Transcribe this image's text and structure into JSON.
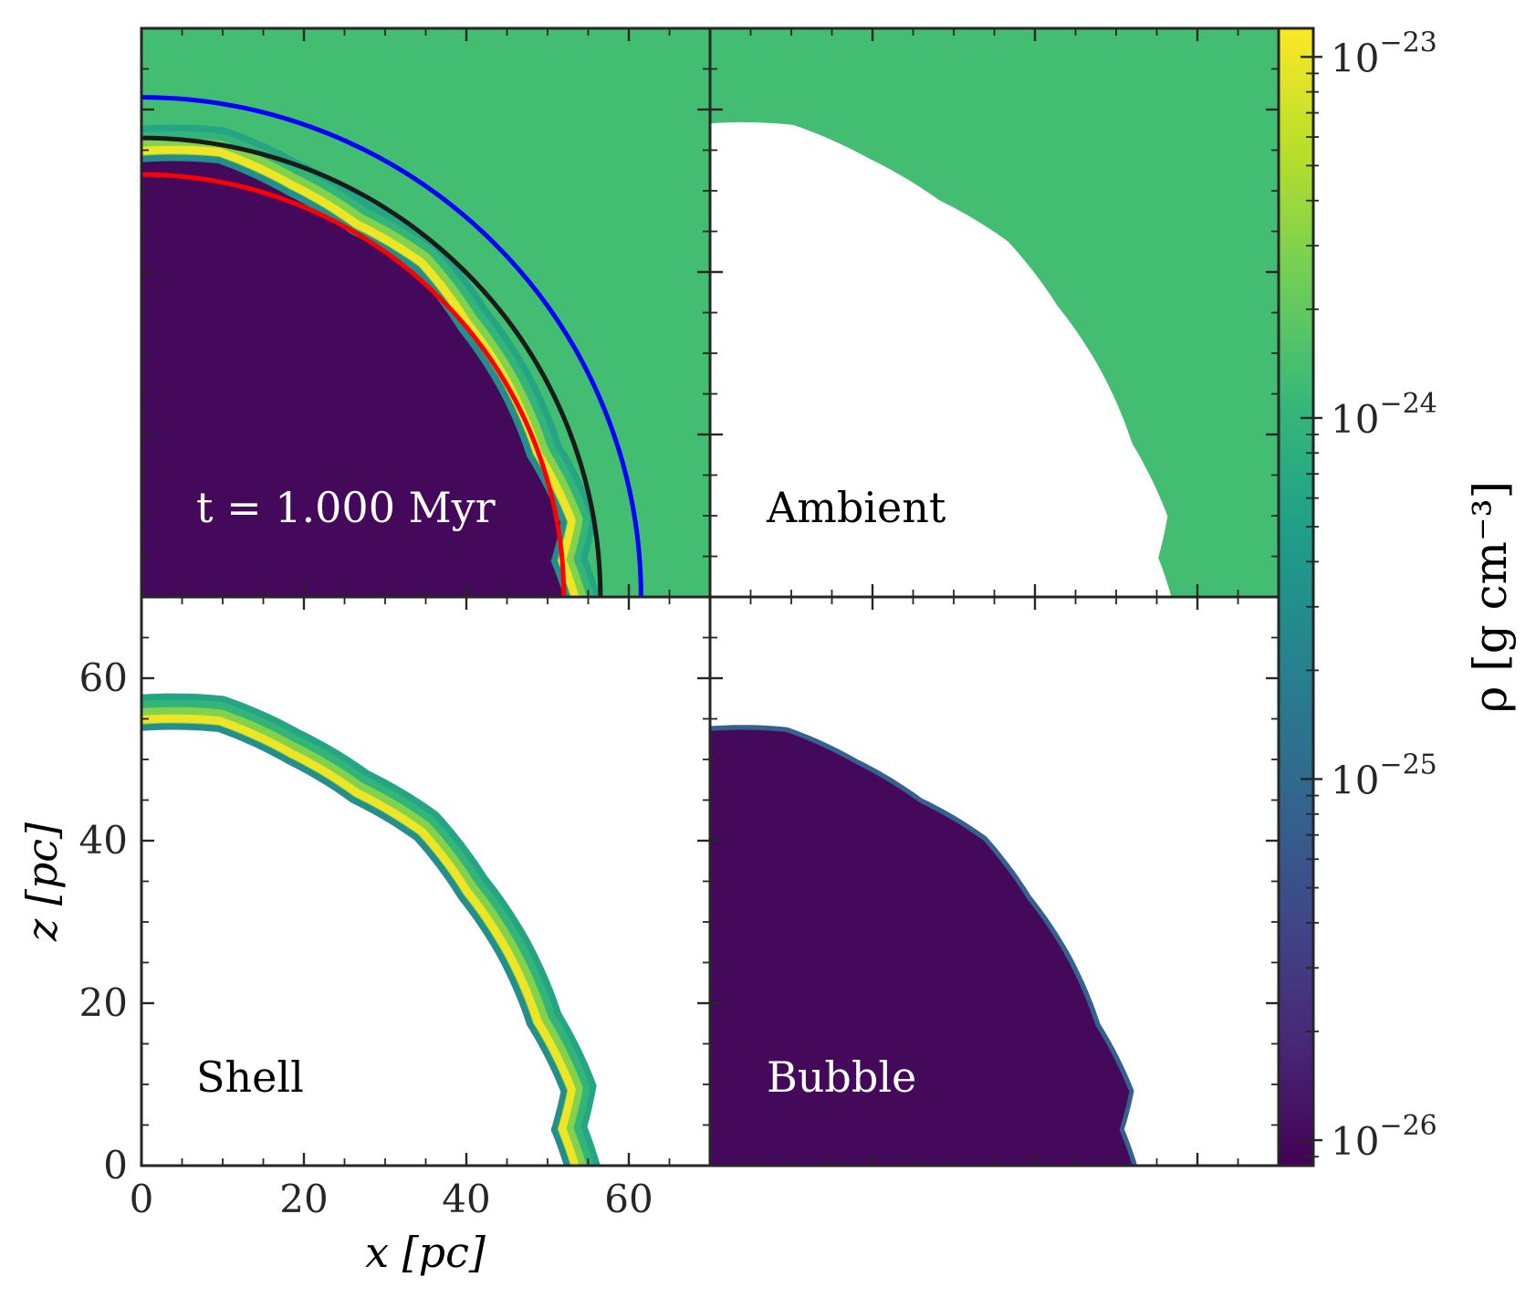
{
  "chart_data": {
    "type": "heatmap",
    "title": "",
    "xlabel": "x [pc]",
    "ylabel": "z [pc]",
    "xlim": [
      0,
      70
    ],
    "ylim": [
      0,
      70
    ],
    "x_ticks": [
      0,
      20,
      40,
      60
    ],
    "y_ticks": [
      0,
      20,
      40,
      60
    ],
    "minor_tick_step": 5,
    "colorbar": {
      "label": "ρ [g cm⁻³]",
      "scale": "log",
      "range": [
        8.5e-27,
        1.2e-23
      ],
      "ticks": [
        {
          "base": "10",
          "exp": "−23",
          "value": 1e-23
        },
        {
          "base": "10",
          "exp": "−24",
          "value": 1e-24
        },
        {
          "base": "10",
          "exp": "−25",
          "value": 1e-25
        },
        {
          "base": "10",
          "exp": "−26",
          "value": 1e-26
        }
      ],
      "colors": [
        "#440154",
        "#482878",
        "#3e4989",
        "#31688e",
        "#26828e",
        "#1f9e89",
        "#35b779",
        "#6ece58",
        "#b5de2b",
        "#fde725"
      ]
    },
    "densities": {
      "bubble": 1e-26,
      "ambient": 1.3e-24,
      "shell_peak": 1e-23,
      "shell_edge": 1e-24
    },
    "shell_inner_radius_profile": {
      "angles_deg": [
        0,
        10,
        20,
        30,
        40,
        50,
        60,
        70,
        80,
        85,
        90
      ],
      "r_pc": [
        53.5,
        54.2,
        52.6,
        51.6,
        52.3,
        51.0,
        50.8,
        50.5,
        52.4,
        50.6,
        52.0
      ]
    },
    "shell_thickness_pc": 4.5,
    "circles": [
      {
        "name": "red",
        "color": "#ff0000",
        "radius": 52
      },
      {
        "name": "black",
        "color": "#1a1a1a",
        "radius": 56.5
      },
      {
        "name": "blue",
        "color": "#0000ff",
        "radius": 61.5
      }
    ],
    "panels": [
      {
        "id": "full",
        "label": "t = 1.000 Myr",
        "label_color": "#ffffff",
        "show": [
          "bubble",
          "shell",
          "ambient"
        ],
        "show_circles": true
      },
      {
        "id": "ambient",
        "label": "Ambient",
        "label_color": "#000000",
        "show": [
          "ambient"
        ],
        "show_circles": false
      },
      {
        "id": "shell",
        "label": "Shell",
        "label_color": "#000000",
        "show": [
          "shell"
        ],
        "show_circles": false
      },
      {
        "id": "bubble",
        "label": "Bubble",
        "label_color": "#ffffff",
        "show": [
          "bubble"
        ],
        "show_circles": false
      }
    ]
  }
}
